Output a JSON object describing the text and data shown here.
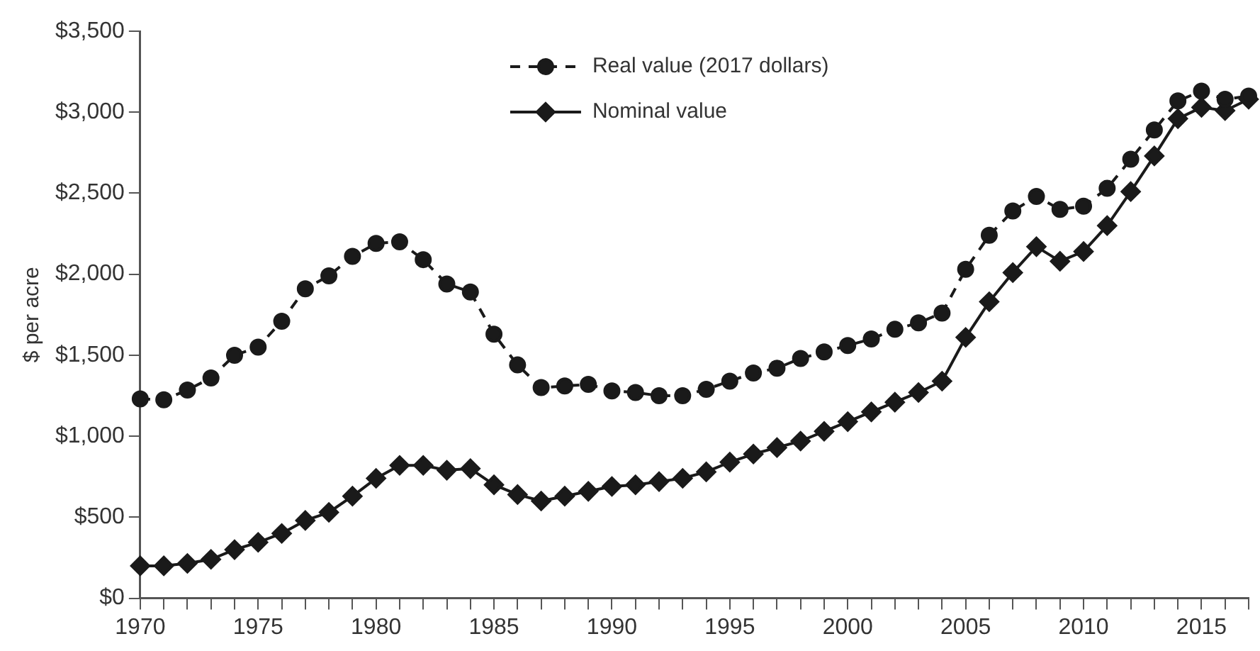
{
  "chart_data": {
    "type": "line",
    "ylabel": "$ per acre",
    "legend": "top",
    "grid": false,
    "x": [
      1970,
      1971,
      1972,
      1973,
      1974,
      1975,
      1976,
      1977,
      1978,
      1979,
      1980,
      1981,
      1982,
      1983,
      1984,
      1985,
      1986,
      1987,
      1988,
      1989,
      1990,
      1991,
      1992,
      1993,
      1994,
      1995,
      1996,
      1997,
      1998,
      1999,
      2000,
      2001,
      2002,
      2003,
      2004,
      2005,
      2006,
      2007,
      2008,
      2009,
      2010,
      2011,
      2012,
      2013,
      2014,
      2015,
      2016,
      2017
    ],
    "xlim": [
      1970,
      2017
    ],
    "xticks": [
      1970,
      {
        "value": 1971,
        "label": null
      },
      {
        "value": 1972,
        "label": null
      },
      {
        "value": 1973,
        "label": null
      },
      {
        "value": 1974,
        "label": null
      },
      1975,
      {
        "value": 1976,
        "label": null
      },
      {
        "value": 1977,
        "label": null
      },
      {
        "value": 1978,
        "label": null
      },
      {
        "value": 1979,
        "label": null
      },
      1980,
      {
        "value": 1981,
        "label": null
      },
      {
        "value": 1982,
        "label": null
      },
      {
        "value": 1983,
        "label": null
      },
      {
        "value": 1984,
        "label": null
      },
      1985,
      {
        "value": 1986,
        "label": null
      },
      {
        "value": 1987,
        "label": null
      },
      {
        "value": 1988,
        "label": null
      },
      {
        "value": 1989,
        "label": null
      },
      1990,
      {
        "value": 1991,
        "label": null
      },
      {
        "value": 1992,
        "label": null
      },
      {
        "value": 1993,
        "label": null
      },
      {
        "value": 1994,
        "label": null
      },
      1995,
      {
        "value": 1996,
        "label": null
      },
      {
        "value": 1997,
        "label": null
      },
      {
        "value": 1998,
        "label": null
      },
      {
        "value": 1999,
        "label": null
      },
      2000,
      {
        "value": 2001,
        "label": null
      },
      {
        "value": 2002,
        "label": null
      },
      {
        "value": 2003,
        "label": null
      },
      {
        "value": 2004,
        "label": null
      },
      2005,
      {
        "value": 2006,
        "label": null
      },
      {
        "value": 2007,
        "label": null
      },
      {
        "value": 2008,
        "label": null
      },
      {
        "value": 2009,
        "label": null
      },
      2010,
      {
        "value": 2011,
        "label": null
      },
      {
        "value": 2012,
        "label": null
      },
      {
        "value": 2013,
        "label": null
      },
      {
        "value": 2014,
        "label": null
      },
      2015,
      {
        "value": 2016,
        "label": null
      },
      {
        "value": 2017,
        "label": null
      }
    ],
    "ylim": [
      0,
      3500
    ],
    "yticks": [
      {
        "value": 0,
        "label": "$0"
      },
      {
        "value": 500,
        "label": "$500"
      },
      {
        "value": 1000,
        "label": "$1,000"
      },
      {
        "value": 1500,
        "label": "$1,500"
      },
      {
        "value": 2000,
        "label": "$2,000"
      },
      {
        "value": 2500,
        "label": "$2,500"
      },
      {
        "value": 3000,
        "label": "$3,000"
      },
      {
        "value": 3500,
        "label": "$3,500"
      }
    ],
    "series": [
      {
        "name": "Real value (2017 dollars)",
        "color": "#1a1a1a",
        "marker": "circle",
        "line_style": "dashed",
        "values": [
          1230,
          1225,
          1285,
          1360,
          1500,
          1550,
          1710,
          1910,
          1990,
          2110,
          2190,
          2200,
          2090,
          1940,
          1890,
          1630,
          1440,
          1300,
          1310,
          1320,
          1280,
          1270,
          1250,
          1250,
          1290,
          1340,
          1390,
          1420,
          1480,
          1520,
          1560,
          1600,
          1660,
          1700,
          1760,
          2030,
          2240,
          2390,
          2480,
          2400,
          2420,
          2530,
          2710,
          2890,
          3070,
          3130,
          3080,
          3100
        ]
      },
      {
        "name": "Nominal value",
        "color": "#1a1a1a",
        "marker": "diamond",
        "line_style": "solid",
        "values": [
          200,
          200,
          215,
          240,
          300,
          345,
          400,
          480,
          530,
          630,
          740,
          820,
          820,
          790,
          800,
          700,
          640,
          600,
          630,
          660,
          690,
          700,
          720,
          740,
          780,
          840,
          890,
          930,
          970,
          1030,
          1090,
          1150,
          1210,
          1270,
          1340,
          1610,
          1830,
          2010,
          2170,
          2080,
          2140,
          2300,
          2510,
          2730,
          2960,
          3030,
          3010,
          3080
        ]
      }
    ]
  }
}
